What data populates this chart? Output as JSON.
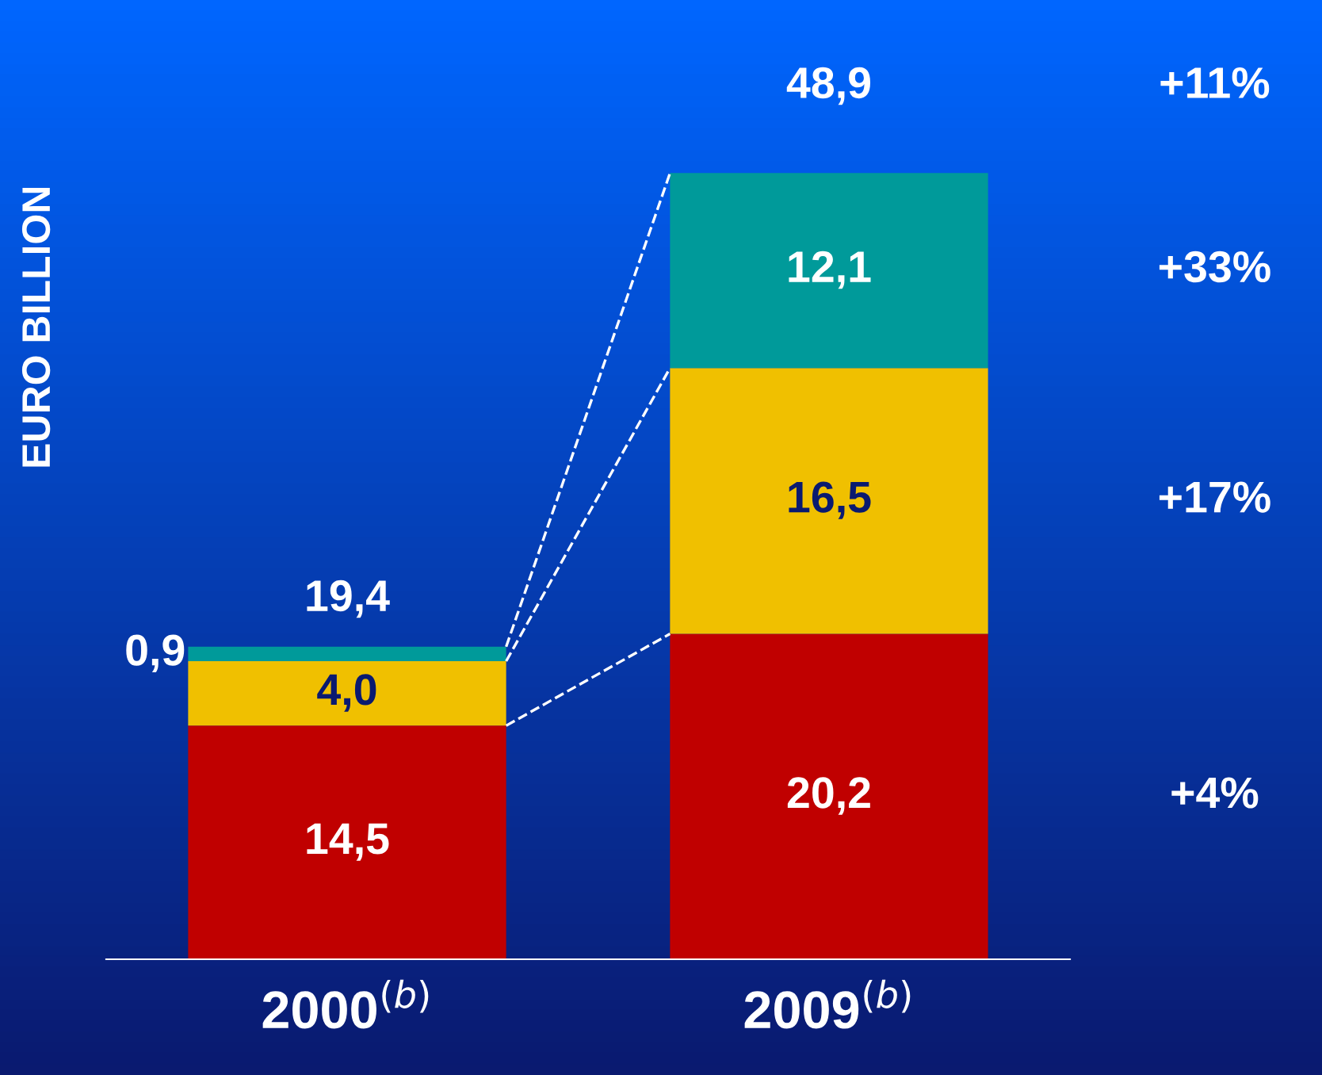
{
  "chart_data": {
    "type": "bar",
    "stacked": true,
    "ylabel": "EURO BILLION",
    "categories": [
      "2000$^{(b)}$",
      "2009$^{(b)}$"
    ],
    "series": [
      {
        "color": "#c00000",
        "values": [
          14.5,
          20.2
        ],
        "value_labels": [
          "14,5",
          "20,2"
        ]
      },
      {
        "color": "#f0c000",
        "values": [
          4.0,
          16.5
        ],
        "value_labels": [
          "4,0",
          "16,5"
        ]
      },
      {
        "color": "#009a9a",
        "values": [
          0.9,
          12.1
        ],
        "value_labels": [
          "0,9",
          "12,1"
        ]
      }
    ],
    "totals": [
      "19,4",
      "48,9"
    ],
    "annotations": [
      "+4%",
      "+17%",
      "+33%",
      "+11%"
    ],
    "grid": false,
    "legend": false,
    "tick_labels": "x"
  }
}
